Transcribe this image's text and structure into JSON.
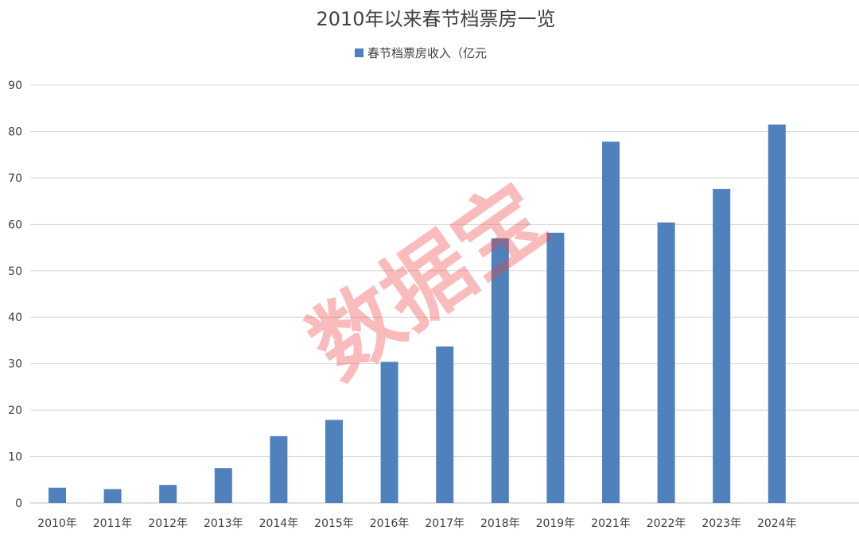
{
  "chart_data": {
    "type": "bar",
    "title": "2010年以来春节档票房一览",
    "categories": [
      "2010年",
      "2011年",
      "2012年",
      "2013年",
      "2014年",
      "2015年",
      "2016年",
      "2017年",
      "2018年",
      "2019年",
      "2021年",
      "2022年",
      "2023年",
      "2024年"
    ],
    "series": [
      {
        "name": "春节档票房收入（亿元",
        "color": "#4f81bd",
        "values": [
          3.3,
          3.0,
          3.9,
          7.5,
          14.4,
          17.9,
          30.4,
          33.7,
          57.0,
          58.2,
          77.8,
          60.4,
          67.6,
          81.5
        ]
      }
    ],
    "yticks": [
      0,
      10,
      20,
      30,
      40,
      50,
      60,
      70,
      80,
      90
    ],
    "ylim": [
      0,
      90
    ],
    "grid": true,
    "legend_position": "top-center"
  },
  "watermark": "数据宝"
}
